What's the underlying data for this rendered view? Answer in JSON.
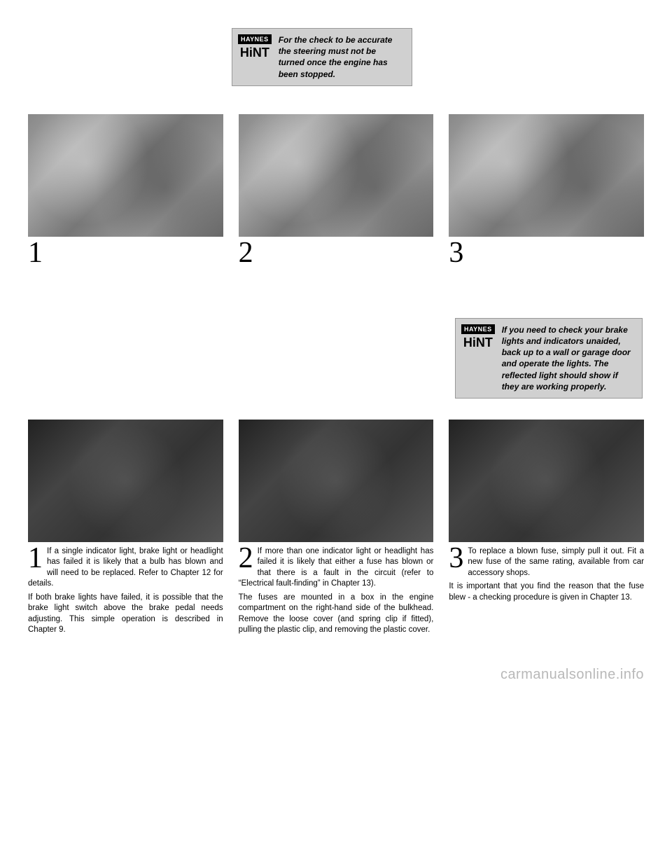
{
  "hint_logo": {
    "badge": "HAYNES",
    "word": "HiNT"
  },
  "top_hint": "For the check to be accurate the steering must not be turned once the engine has been stopped.",
  "bottom_hint": "If you need to check  your brake lights and indicators unaided, back up to a wall or garage door and operate the lights. The reflected light should show if they are working properly.",
  "steps_top": [
    {
      "num": "1",
      "text": ""
    },
    {
      "num": "2",
      "text": ""
    },
    {
      "num": "3",
      "text": ""
    }
  ],
  "steps_bottom": [
    {
      "num": "1",
      "p1": "If a single indicator light, brake light or headlight has failed it is likely that a bulb has blown and will need to be replaced. Refer to Chapter 12 for details.",
      "p2": "If both brake lights have failed, it is possible that the brake light switch above the brake pedal needs adjusting. This simple operation is described in Chapter 9."
    },
    {
      "num": "2",
      "p1": "If more than one indicator light or headlight has failed it is likely that either a fuse has blown or that there is a fault in the circuit (refer to “Electrical fault-finding” in Chapter 13).",
      "p2": "The fuses are mounted in a box in the engine compartment on the right-hand side of the bulkhead. Remove the loose cover (and spring clip if fitted), pulling the plastic clip, and removing the plastic cover."
    },
    {
      "num": "3",
      "p1": "To replace a blown fuse, simply pull it out. Fit a new fuse of the same rating, available from car accessory shops.",
      "p2": "It is important that you find the reason that the fuse blew - a checking procedure is given in Chapter 13."
    }
  ],
  "watermark": "carmanualsonline.info"
}
